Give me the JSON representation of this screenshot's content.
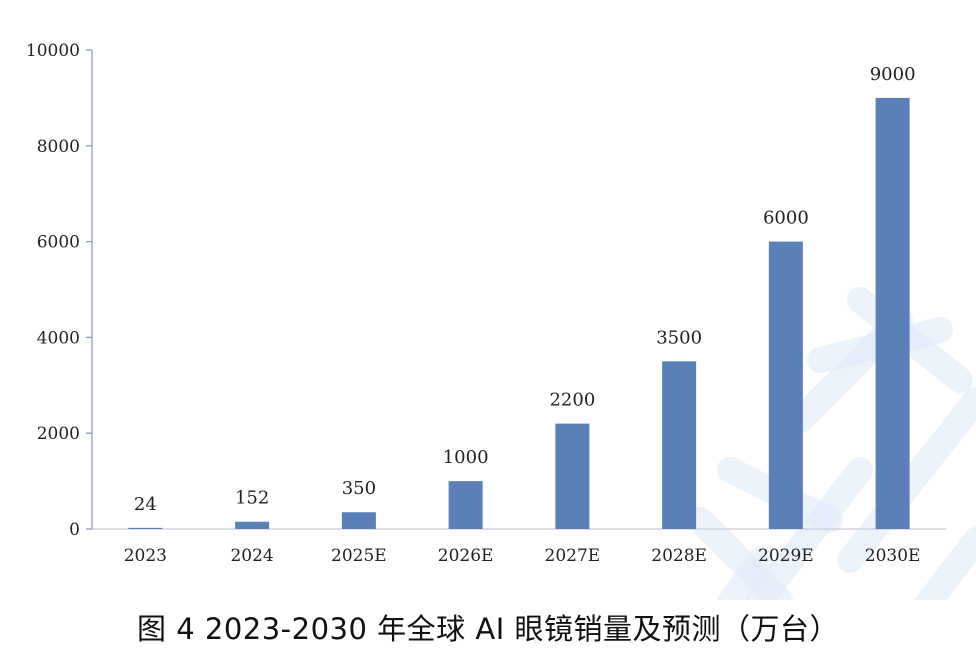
{
  "chart_data": {
    "type": "bar",
    "categories": [
      "2023",
      "2024",
      "2025E",
      "2026E",
      "2027E",
      "2028E",
      "2029E",
      "2030E"
    ],
    "values": [
      24,
      152,
      350,
      1000,
      2200,
      3500,
      6000,
      9000
    ],
    "data_labels": [
      "24",
      "152",
      "350",
      "1000",
      "2200",
      "3500",
      "6000",
      "9000"
    ],
    "title": "图 4 2023-2030 年全球 AI 眼镜销量及预测（万台）",
    "xlabel": "",
    "ylabel": "",
    "ylim": [
      0,
      10000
    ],
    "yticks": [
      "0",
      "2000",
      "4000",
      "6000",
      "8000",
      "10000"
    ],
    "grid": false,
    "legend": "none"
  },
  "colors": {
    "bar": "#5B80B8",
    "axis": "#8E9CC4",
    "watermark": "#DCE8F6"
  }
}
